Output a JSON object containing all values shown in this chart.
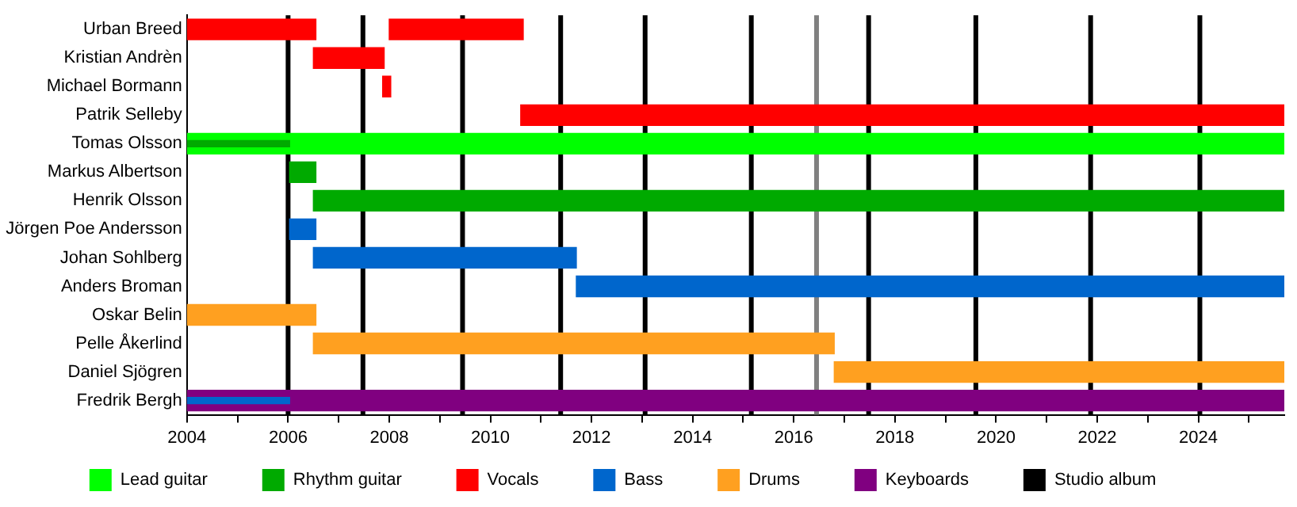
{
  "chart_data": {
    "type": "bar",
    "orientation": "horizontal",
    "categories": [
      "Urban Breed",
      "Kristian Andrèn",
      "Michael Bormann",
      "Patrik Selleby",
      "Tomas Olsson",
      "Markus Albertson",
      "Henrik Olsson",
      "Jörgen Poe Andersson",
      "Johan Sohlberg",
      "Anders Broman",
      "Oskar Belin",
      "Pelle Åkerlind",
      "Daniel Sjögren",
      "Fredrik Bergh"
    ],
    "series": [
      {
        "name": "Lead guitar",
        "color": "#00ff00",
        "base": [
          null,
          null,
          null,
          null,
          2004,
          null,
          null,
          null,
          null,
          null,
          null,
          null,
          null,
          null
        ],
        "values": [
          null,
          null,
          null,
          null,
          21.7,
          null,
          null,
          null,
          null,
          null,
          null,
          null,
          null,
          null
        ]
      },
      {
        "name": "Rhythm guitar",
        "color": "#00aa00",
        "base": [
          null,
          null,
          null,
          null,
          2004,
          2006.03,
          2006.5,
          null,
          null,
          null,
          null,
          null,
          null,
          null
        ],
        "values": [
          null,
          null,
          null,
          null,
          2.03,
          0.52,
          19.2,
          null,
          null,
          null,
          null,
          null,
          null,
          null
        ]
      },
      {
        "name": "Vocals",
        "color": "#ff0000",
        "base": [
          2004,
          2006.5,
          2007.87,
          2010.6,
          null,
          null,
          null,
          null,
          null,
          null,
          null,
          null,
          null,
          null
        ],
        "values": [
          2.55,
          1.4,
          0.16,
          15.1,
          null,
          null,
          null,
          null,
          null,
          null,
          null,
          null,
          null,
          null
        ]
      },
      {
        "name": "Bass",
        "color": "#0066cc",
        "base": [
          null,
          null,
          null,
          null,
          null,
          null,
          null,
          2006.03,
          2006.5,
          2011.7,
          null,
          null,
          null,
          2004
        ],
        "values": [
          null,
          null,
          null,
          null,
          null,
          null,
          null,
          0.52,
          5.2,
          14.0,
          null,
          null,
          null,
          2.03
        ]
      },
      {
        "name": "Drums",
        "color": "#ffa020",
        "base": [
          null,
          null,
          null,
          null,
          null,
          null,
          null,
          null,
          null,
          null,
          2004,
          2006.5,
          2016.8,
          null
        ],
        "values": [
          null,
          null,
          null,
          null,
          null,
          null,
          null,
          null,
          null,
          null,
          2.55,
          10.3,
          8.9,
          null
        ]
      },
      {
        "name": "Keyboards",
        "color": "#800080",
        "base": [
          null,
          null,
          null,
          null,
          null,
          null,
          null,
          null,
          null,
          null,
          null,
          null,
          null,
          2004
        ],
        "values": [
          null,
          null,
          null,
          null,
          null,
          null,
          null,
          null,
          null,
          null,
          null,
          null,
          null,
          21.7
        ]
      },
      {
        "color": "#ff0000",
        "base": [
          2008.0,
          null,
          null,
          null,
          null,
          null,
          null,
          null,
          null,
          null,
          null,
          null,
          null,
          null
        ],
        "values": [
          2.65,
          null,
          null,
          null,
          null,
          null,
          null,
          null,
          null,
          null,
          null,
          null,
          null,
          null
        ]
      }
    ],
    "xlim": [
      2004,
      2025.7
    ],
    "xticks": [
      2004,
      {
        "value": 2005,
        "label": null
      },
      2006,
      {
        "value": 2007,
        "label": null
      },
      2008,
      {
        "value": 2009,
        "label": null
      },
      2010,
      {
        "value": 2011,
        "label": null
      },
      2012,
      {
        "value": 2013,
        "label": null
      },
      2014,
      {
        "value": 2015,
        "label": null
      },
      2016,
      {
        "value": 2017,
        "label": null
      },
      2018,
      {
        "value": 2019,
        "label": null
      },
      2020,
      {
        "value": 2021,
        "label": null
      },
      2022,
      {
        "value": 2023,
        "label": null
      },
      2024,
      {
        "value": 2025,
        "label": null
      }
    ],
    "ref_lines": [
      {
        "axis": "x",
        "value": 2006.0,
        "label": "Studio album",
        "color": "#000000"
      },
      {
        "axis": "x",
        "value": 2007.48,
        "color": "#000000"
      },
      {
        "axis": "x",
        "value": 2009.45,
        "color": "#000000"
      },
      {
        "axis": "x",
        "value": 2011.39,
        "color": "#000000"
      },
      {
        "axis": "x",
        "value": 2013.06,
        "color": "#000000"
      },
      {
        "axis": "x",
        "value": 2015.16,
        "color": "#000000"
      },
      {
        "axis": "x",
        "value": 2016.45,
        "color": "#808080"
      },
      {
        "axis": "x",
        "value": 2017.48,
        "color": "#000000"
      },
      {
        "axis": "x",
        "value": 2019.6,
        "color": "#000000"
      },
      {
        "axis": "x",
        "value": 2021.87,
        "color": "#000000"
      },
      {
        "axis": "x",
        "value": 2024.03,
        "color": "#000000"
      }
    ],
    "grid": false,
    "legend": "bottom"
  }
}
